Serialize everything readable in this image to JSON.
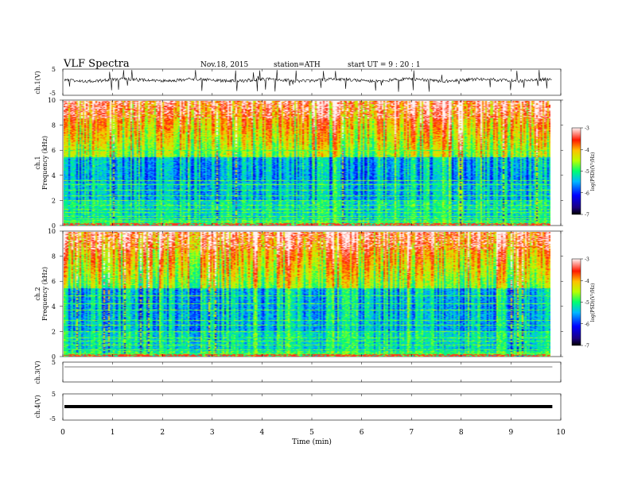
{
  "header": {
    "title": "VLF  Spectra",
    "date": "Nov.18, 2015",
    "station": "station=ATH",
    "start": "start  UT  =   9  : 20 : 1"
  },
  "chart_data": {
    "type": "heatmap",
    "xlabel": "Time  (min)",
    "xlim": [
      0,
      10
    ],
    "x_ticks": [
      "0",
      "1",
      "2",
      "3",
      "4",
      "5",
      "6",
      "7",
      "8",
      "9",
      "10"
    ],
    "data_end_min": 9.83,
    "panels": [
      {
        "kind": "waveform",
        "ylabel": "ch.1(V)",
        "y_ticks": [
          "5",
          "-5"
        ],
        "ylim": [
          -5,
          5
        ]
      },
      {
        "kind": "spectrogram",
        "channel": "ch.1",
        "ylabel": "Frequency  (kHz)",
        "ylim_khz": [
          0,
          10
        ],
        "y_ticks": [
          "0",
          "2",
          "4",
          "6",
          "8",
          "10"
        ],
        "colorbar": {
          "label": "log(PSD)(V²/Hz)",
          "range": [
            -7,
            -3
          ],
          "ticks": [
            "-3",
            "-4",
            "-5",
            "-6",
            "-7"
          ]
        },
        "narrowband_lines_khz": [
          0.1,
          0.3,
          0.5,
          0.7,
          1.0,
          1.3,
          1.6,
          2.0,
          2.4,
          2.8,
          3.3,
          3.6,
          6.0
        ]
      },
      {
        "kind": "spectrogram",
        "channel": "ch.2",
        "ylabel": "Frequency  (kHz)",
        "ylim_khz": [
          0,
          10
        ],
        "y_ticks": [
          "0",
          "2",
          "4",
          "6",
          "8",
          "10"
        ],
        "colorbar": {
          "label": "log(PSD)(V²/Hz)",
          "range": [
            -7,
            -3
          ],
          "ticks": [
            "-3",
            "-4",
            "-5",
            "-6",
            "-7"
          ]
        },
        "narrowband_lines_khz": [
          0.2,
          0.5,
          0.9,
          1.2,
          1.5,
          2.0,
          2.5,
          2.9,
          3.7,
          4.2,
          4.9
        ]
      },
      {
        "kind": "waveform",
        "ylabel": "ch.3(V)",
        "y_ticks": [
          "5"
        ],
        "ylim": [
          -5,
          5
        ]
      },
      {
        "kind": "waveform",
        "ylabel": "ch.4(V)",
        "y_ticks": [
          "5",
          "-5"
        ],
        "ylim": [
          -5,
          5
        ]
      }
    ]
  }
}
